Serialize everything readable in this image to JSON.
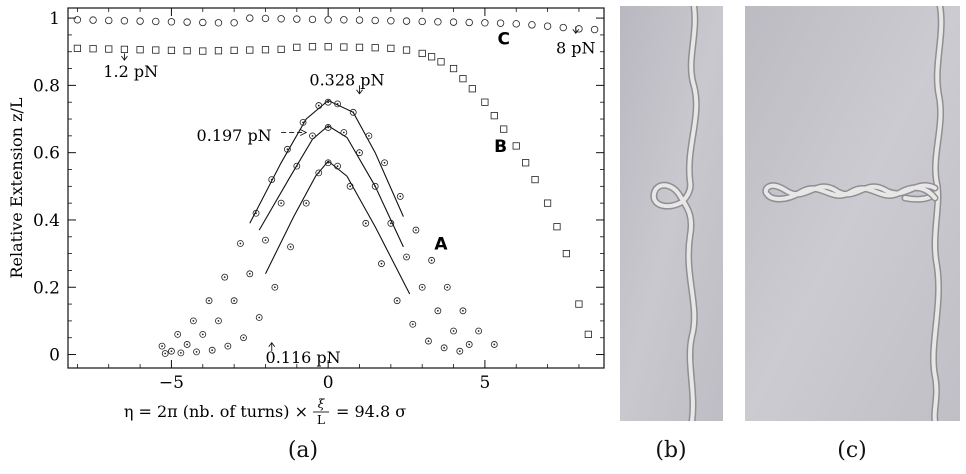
{
  "panels": {
    "a_label": "(a)",
    "b_label": "(b)",
    "c_label": "(c)"
  },
  "chart_data": {
    "type": "scatter",
    "xlabel_prefix": "η = 2π (nb. of turns) ×",
    "xlabel_fraction_top": "ξ",
    "xlabel_fraction_bottom": "L",
    "xlabel_suffix": "= 94.8 σ",
    "ylabel": "Relative Extension z/L",
    "xlim": [
      -8.3,
      8.8
    ],
    "ylim": [
      -0.04,
      1.03
    ],
    "x_ticks": [
      -5,
      0,
      5
    ],
    "y_ticks": [
      0,
      0.2,
      0.4,
      0.6,
      0.8,
      1
    ],
    "x_tick_labels": [
      "−5",
      "0",
      "5"
    ],
    "y_tick_labels": [
      "0",
      "0.2",
      "0.4",
      "0.6",
      "0.8",
      "1"
    ],
    "grid": false,
    "annotations": [
      {
        "text": "1.2 pN",
        "x": -6.5,
        "y": 0.86
      },
      {
        "text": "8 pN",
        "x": 7.8,
        "y": 0.94
      },
      {
        "text": "0.328 pN",
        "x": 0.8,
        "y": 0.8
      },
      {
        "text": "0.197 pN",
        "x": -4.0,
        "y": 0.64
      },
      {
        "text": "0.116 pN",
        "x": -1.8,
        "y": 0.01
      }
    ],
    "curve_labels": [
      {
        "text": "C",
        "x": 5.6,
        "y": 0.94
      },
      {
        "text": "B",
        "x": 5.5,
        "y": 0.62
      },
      {
        "text": "A",
        "x": 3.6,
        "y": 0.33
      }
    ],
    "series": [
      {
        "name": "C",
        "marker": "circle",
        "points": [
          [
            -8,
            0.995
          ],
          [
            -7.5,
            0.994
          ],
          [
            -7,
            0.993
          ],
          [
            -6.5,
            0.992
          ],
          [
            -6,
            0.991
          ],
          [
            -5.5,
            0.99
          ],
          [
            -5,
            0.989
          ],
          [
            -4.5,
            0.988
          ],
          [
            -4,
            0.987
          ],
          [
            -3.5,
            0.986
          ],
          [
            -3,
            0.986
          ],
          [
            -2.5,
            1.0
          ],
          [
            -2,
            0.999
          ],
          [
            -1.5,
            0.998
          ],
          [
            -1,
            0.997
          ],
          [
            -0.5,
            0.996
          ],
          [
            0,
            0.995
          ],
          [
            0.5,
            0.995
          ],
          [
            1,
            0.994
          ],
          [
            1.5,
            0.993
          ],
          [
            2,
            0.992
          ],
          [
            2.5,
            0.991
          ],
          [
            3,
            0.99
          ],
          [
            3.5,
            0.989
          ],
          [
            4,
            0.988
          ],
          [
            4.5,
            0.987
          ],
          [
            5,
            0.986
          ],
          [
            5.5,
            0.985
          ],
          [
            6,
            0.983
          ],
          [
            6.5,
            0.98
          ],
          [
            7,
            0.976
          ],
          [
            7.5,
            0.972
          ],
          [
            8,
            0.968
          ],
          [
            8.5,
            0.966
          ]
        ]
      },
      {
        "name": "B",
        "marker": "square",
        "points": [
          [
            -8,
            0.91
          ],
          [
            -7.5,
            0.909
          ],
          [
            -7,
            0.908
          ],
          [
            -6.5,
            0.907
          ],
          [
            -6,
            0.906
          ],
          [
            -5.5,
            0.905
          ],
          [
            -5,
            0.904
          ],
          [
            -4.5,
            0.903
          ],
          [
            -4,
            0.902
          ],
          [
            -3.5,
            0.903
          ],
          [
            -3,
            0.904
          ],
          [
            -2.5,
            0.905
          ],
          [
            -2,
            0.906
          ],
          [
            -1.5,
            0.907
          ],
          [
            -1,
            0.913
          ],
          [
            -0.5,
            0.915
          ],
          [
            0,
            0.915
          ],
          [
            0.5,
            0.914
          ],
          [
            1,
            0.913
          ],
          [
            1.5,
            0.912
          ],
          [
            2,
            0.91
          ],
          [
            2.5,
            0.905
          ],
          [
            3,
            0.895
          ],
          [
            3.3,
            0.885
          ],
          [
            3.6,
            0.87
          ],
          [
            4,
            0.85
          ],
          [
            4.3,
            0.82
          ],
          [
            4.6,
            0.79
          ],
          [
            5,
            0.75
          ],
          [
            5.3,
            0.71
          ],
          [
            5.6,
            0.67
          ],
          [
            6,
            0.62
          ],
          [
            6.3,
            0.57
          ],
          [
            6.6,
            0.52
          ],
          [
            7,
            0.45
          ],
          [
            7.3,
            0.38
          ],
          [
            7.6,
            0.3
          ],
          [
            8,
            0.15
          ],
          [
            8.3,
            0.06
          ]
        ]
      },
      {
        "name": "0.328 pN",
        "marker": "dot-circle",
        "points": [
          [
            -5.3,
            0.025
          ],
          [
            -4.8,
            0.06
          ],
          [
            -4.3,
            0.1
          ],
          [
            -3.8,
            0.16
          ],
          [
            -3.3,
            0.23
          ],
          [
            -2.8,
            0.33
          ],
          [
            -2.3,
            0.42
          ],
          [
            -1.8,
            0.52
          ],
          [
            -1.3,
            0.61
          ],
          [
            -0.8,
            0.69
          ],
          [
            -0.3,
            0.74
          ],
          [
            0,
            0.75
          ],
          [
            0.3,
            0.745
          ],
          [
            0.8,
            0.72
          ],
          [
            1.3,
            0.65
          ],
          [
            1.8,
            0.57
          ],
          [
            2.3,
            0.47
          ],
          [
            2.8,
            0.37
          ],
          [
            3.3,
            0.28
          ],
          [
            3.8,
            0.2
          ],
          [
            4.3,
            0.13
          ],
          [
            4.8,
            0.07
          ],
          [
            5.3,
            0.03
          ]
        ]
      },
      {
        "name": "0.197 pN",
        "marker": "dot-circle",
        "points": [
          [
            -5.0,
            0.01
          ],
          [
            -4.5,
            0.03
          ],
          [
            -4.0,
            0.06
          ],
          [
            -3.5,
            0.1
          ],
          [
            -3.0,
            0.16
          ],
          [
            -2.5,
            0.24
          ],
          [
            -2.0,
            0.34
          ],
          [
            -1.5,
            0.45
          ],
          [
            -1.0,
            0.56
          ],
          [
            -0.5,
            0.65
          ],
          [
            0,
            0.675
          ],
          [
            0.5,
            0.66
          ],
          [
            1.0,
            0.6
          ],
          [
            1.5,
            0.5
          ],
          [
            2.0,
            0.39
          ],
          [
            2.5,
            0.29
          ],
          [
            3.0,
            0.2
          ],
          [
            3.5,
            0.13
          ],
          [
            4.0,
            0.07
          ],
          [
            4.5,
            0.03
          ]
        ]
      },
      {
        "name": "0.116 pN",
        "marker": "dot-circle",
        "points": [
          [
            -5.2,
            0.003
          ],
          [
            -4.7,
            0.005
          ],
          [
            -4.2,
            0.008
          ],
          [
            -3.7,
            0.013
          ],
          [
            -3.2,
            0.025
          ],
          [
            -2.7,
            0.05
          ],
          [
            -2.2,
            0.11
          ],
          [
            -1.7,
            0.2
          ],
          [
            -1.2,
            0.32
          ],
          [
            -0.7,
            0.45
          ],
          [
            -0.3,
            0.54
          ],
          [
            0,
            0.57
          ],
          [
            0.3,
            0.56
          ],
          [
            0.7,
            0.5
          ],
          [
            1.2,
            0.39
          ],
          [
            1.7,
            0.27
          ],
          [
            2.2,
            0.16
          ],
          [
            2.7,
            0.09
          ],
          [
            3.2,
            0.04
          ],
          [
            3.7,
            0.02
          ],
          [
            4.2,
            0.01
          ]
        ]
      }
    ],
    "fits": [
      {
        "points": [
          [
            -2.5,
            0.39
          ],
          [
            -1.5,
            0.57
          ],
          [
            -0.7,
            0.7
          ],
          [
            0,
            0.755
          ],
          [
            0.8,
            0.72
          ],
          [
            1.5,
            0.6
          ],
          [
            2.4,
            0.41
          ]
        ]
      },
      {
        "points": [
          [
            -2.2,
            0.37
          ],
          [
            -1.2,
            0.53
          ],
          [
            -0.5,
            0.64
          ],
          [
            0,
            0.68
          ],
          [
            0.6,
            0.645
          ],
          [
            1.5,
            0.5
          ],
          [
            2.4,
            0.32
          ]
        ]
      },
      {
        "points": [
          [
            -2.0,
            0.24
          ],
          [
            -1.1,
            0.41
          ],
          [
            -0.4,
            0.53
          ],
          [
            0,
            0.575
          ],
          [
            0.6,
            0.53
          ],
          [
            1.5,
            0.38
          ],
          [
            2.6,
            0.18
          ]
        ]
      }
    ]
  }
}
